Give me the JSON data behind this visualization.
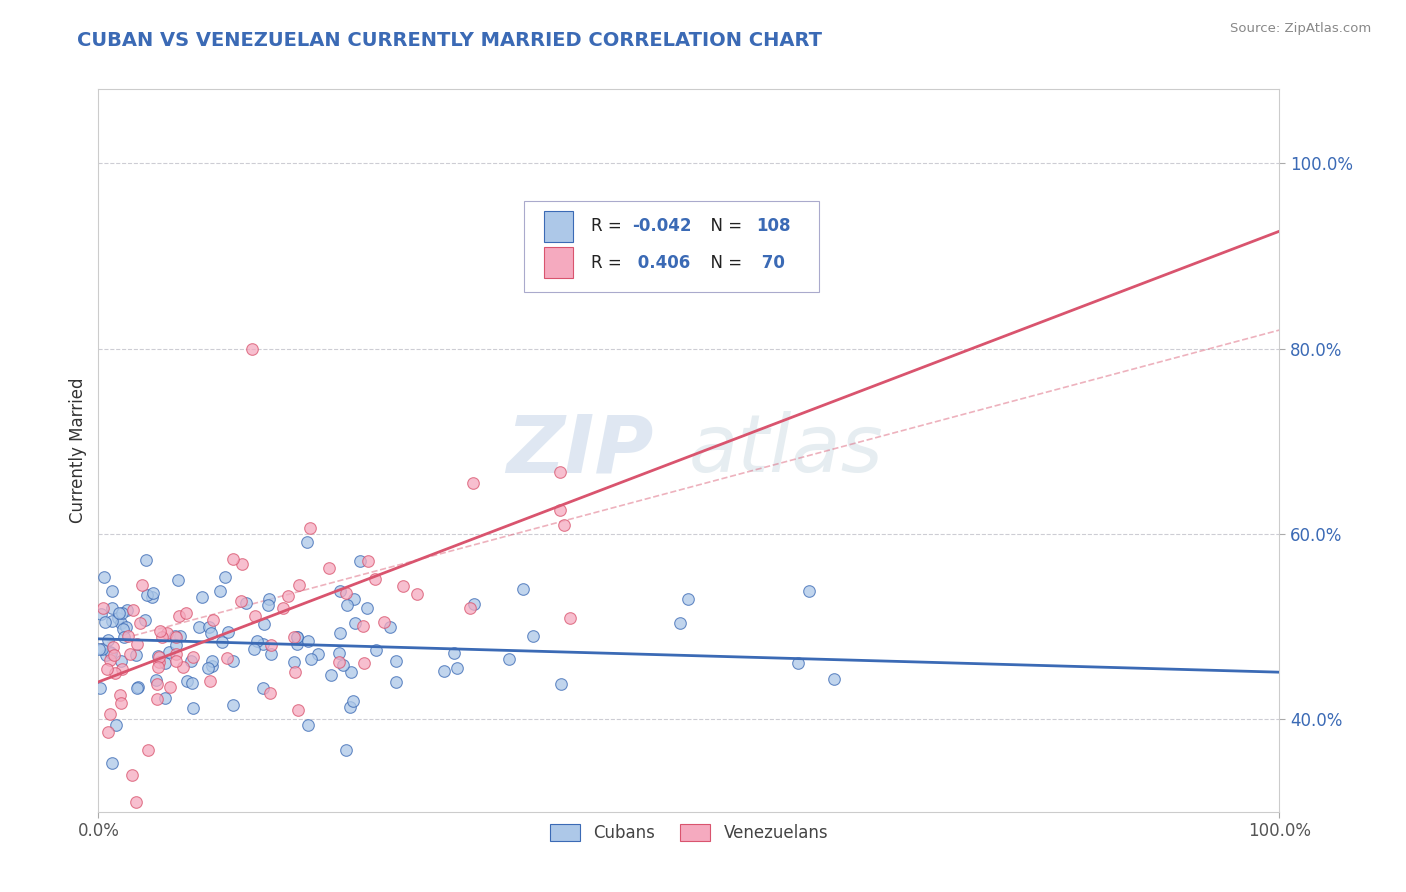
{
  "title": "CUBAN VS VENEZUELAN CURRENTLY MARRIED CORRELATION CHART",
  "source_text": "Source: ZipAtlas.com",
  "ylabel": "Currently Married",
  "xlim": [
    0.0,
    1.0
  ],
  "ylim": [
    0.3,
    1.08
  ],
  "ytick_labels": [
    "40.0%",
    "60.0%",
    "80.0%",
    "100.0%"
  ],
  "ytick_values": [
    0.4,
    0.6,
    0.8,
    1.0
  ],
  "xtick_labels": [
    "0.0%",
    "100.0%"
  ],
  "xtick_values": [
    0.0,
    1.0
  ],
  "cuban_R": -0.042,
  "cuban_N": 108,
  "venezuelan_R": 0.406,
  "venezuelan_N": 70,
  "cuban_color": "#adc8e8",
  "venezuelan_color": "#f5aabf",
  "cuban_line_color": "#3b6ab5",
  "venezuelan_line_color": "#d9546e",
  "legend_label_1": "Cubans",
  "legend_label_2": "Venezuelans",
  "watermark_zip": "ZIP",
  "watermark_atlas": "atlas",
  "background_color": "#ffffff",
  "grid_color": "#c8c8d0",
  "title_color": "#3b6ab5",
  "tick_color": "#3b6ab5",
  "source_color": "#888888"
}
